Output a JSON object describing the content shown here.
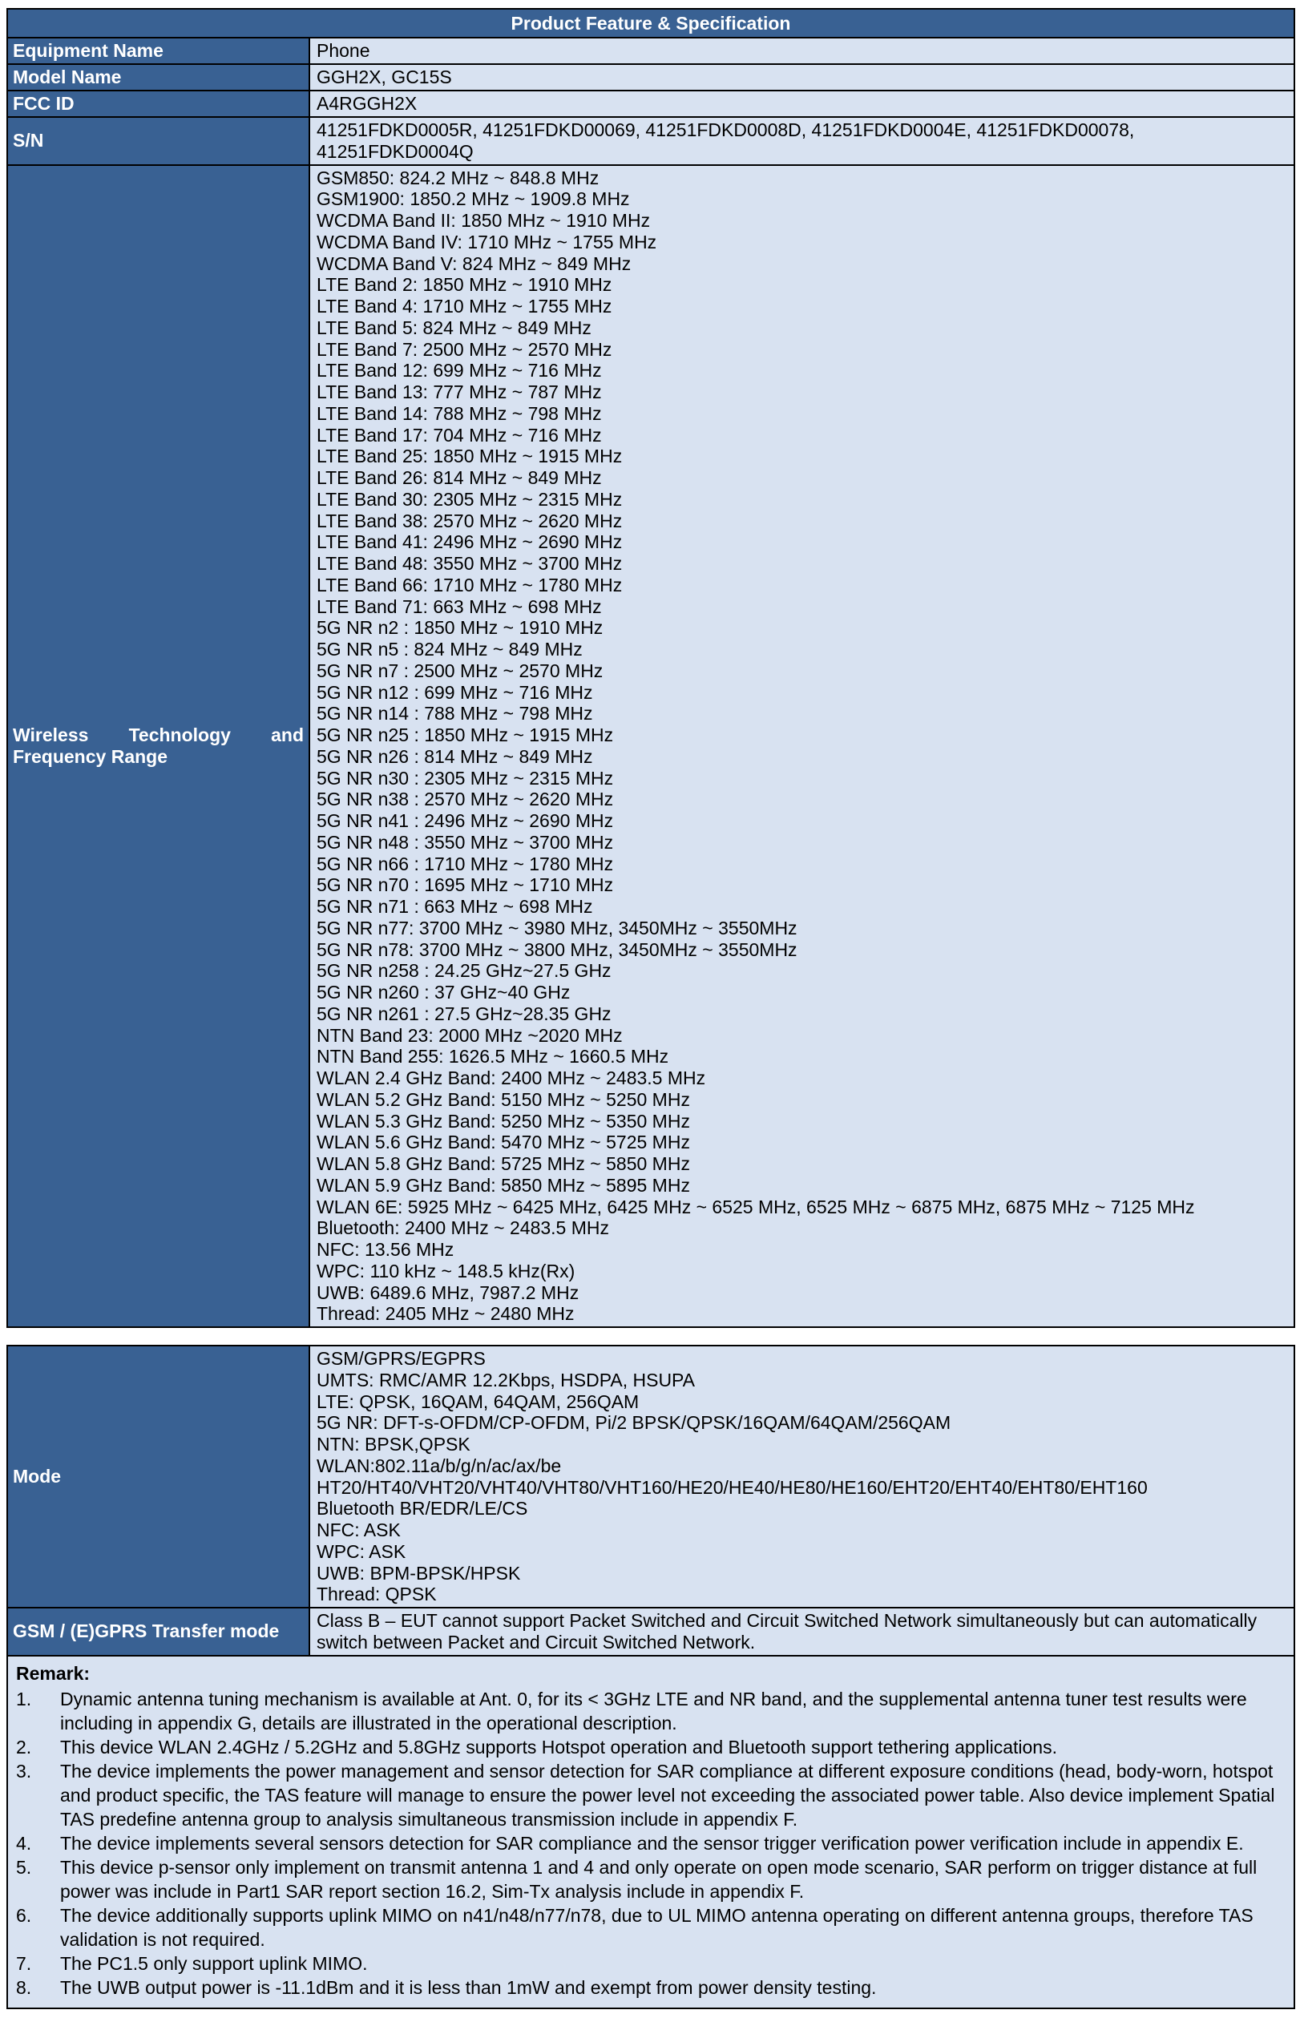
{
  "colors": {
    "header_bg": "#396193",
    "label_bg": "#396193",
    "label_text": "#ffffff",
    "value_bg": "#D8E2F1",
    "value_text": "#000000",
    "border": "#000000",
    "page_bg": "#ffffff"
  },
  "table1": {
    "title": "Product Feature & Specification",
    "rows": [
      {
        "label": "Equipment Name",
        "value": "Phone"
      },
      {
        "label": "Model Name",
        "value": "GGH2X, GC15S"
      },
      {
        "label": "FCC ID",
        "value": "A4RGGH2X"
      },
      {
        "label": "S/N",
        "value": "41251FDKD0005R, 41251FDKD00069, 41251FDKD0008D, 41251FDKD0004E, 41251FDKD00078, 41251FDKD0004Q"
      },
      {
        "label": "Wireless Technology and Frequency Range",
        "lines": [
          "GSM850: 824.2 MHz ~ 848.8 MHz",
          "GSM1900: 1850.2 MHz ~ 1909.8 MHz",
          "WCDMA Band II: 1850 MHz ~ 1910 MHz",
          "WCDMA Band IV: 1710 MHz ~ 1755 MHz",
          "WCDMA Band V: 824 MHz ~ 849 MHz",
          "LTE Band 2: 1850 MHz ~ 1910 MHz",
          "LTE Band 4: 1710 MHz ~ 1755 MHz",
          "LTE Band 5: 824 MHz ~ 849 MHz",
          "LTE Band 7: 2500 MHz ~ 2570 MHz",
          "LTE Band 12: 699 MHz ~ 716 MHz",
          "LTE Band 13: 777 MHz ~ 787 MHz",
          "LTE Band 14: 788 MHz ~ 798 MHz",
          "LTE Band 17: 704 MHz ~ 716 MHz",
          "LTE Band 25: 1850 MHz ~ 1915 MHz",
          "LTE Band 26: 814 MHz ~ 849 MHz",
          "LTE Band 30: 2305 MHz ~ 2315 MHz",
          "LTE Band 38: 2570 MHz ~ 2620 MHz",
          "LTE Band 41: 2496 MHz ~ 2690 MHz",
          "LTE Band 48: 3550 MHz ~ 3700 MHz",
          "LTE Band 66: 1710 MHz ~ 1780 MHz",
          "LTE Band 71: 663 MHz ~ 698 MHz",
          "5G NR n2 : 1850 MHz ~ 1910 MHz",
          "5G NR n5 : 824 MHz ~ 849 MHz",
          "5G NR n7 : 2500 MHz ~ 2570 MHz",
          "5G NR n12 : 699 MHz ~ 716 MHz",
          "5G NR n14 : 788 MHz ~ 798 MHz",
          "5G NR n25 : 1850 MHz ~ 1915 MHz",
          "5G NR n26 : 814 MHz ~ 849 MHz",
          "5G NR n30 : 2305 MHz ~ 2315 MHz",
          "5G NR n38 : 2570 MHz ~ 2620 MHz",
          "5G NR n41 : 2496 MHz ~ 2690 MHz",
          "5G NR n48 : 3550 MHz ~ 3700 MHz",
          "5G NR n66 : 1710 MHz ~ 1780 MHz",
          "5G NR n70 : 1695 MHz ~ 1710 MHz",
          "5G NR n71 : 663 MHz ~ 698 MHz",
          "5G NR n77: 3700 MHz ~ 3980 MHz, 3450MHz ~ 3550MHz",
          "5G NR n78: 3700 MHz ~ 3800 MHz, 3450MHz ~ 3550MHz",
          "5G NR n258 : 24.25 GHz~27.5 GHz",
          "5G NR n260 : 37 GHz~40 GHz",
          "5G NR n261 : 27.5 GHz~28.35 GHz",
          "NTN Band 23: 2000 MHz ~2020 MHz",
          "NTN Band 255: 1626.5 MHz ~ 1660.5 MHz",
          "WLAN 2.4 GHz Band: 2400 MHz ~ 2483.5 MHz",
          "WLAN 5.2 GHz Band: 5150 MHz ~ 5250 MHz",
          "WLAN 5.3 GHz Band: 5250 MHz ~ 5350 MHz",
          "WLAN 5.6 GHz Band: 5470 MHz ~ 5725 MHz",
          "WLAN 5.8 GHz Band: 5725 MHz ~ 5850 MHz",
          "WLAN 5.9 GHz Band: 5850 MHz ~ 5895 MHz",
          "WLAN 6E: 5925 MHz ~ 6425 MHz, 6425 MHz ~ 6525 MHz, 6525 MHz ~ 6875 MHz, 6875 MHz ~ 7125 MHz",
          "Bluetooth: 2400 MHz ~ 2483.5 MHz",
          "NFC: 13.56 MHz",
          "WPC: 110 kHz ~ 148.5 kHz(Rx)",
          "UWB: 6489.6 MHz, 7987.2 MHz",
          "Thread: 2405 MHz ~ 2480 MHz"
        ]
      }
    ]
  },
  "table2": {
    "mode": {
      "label": "Mode",
      "lines": [
        "GSM/GPRS/EGPRS",
        "UMTS: RMC/AMR 12.2Kbps, HSDPA, HSUPA",
        "LTE: QPSK, 16QAM, 64QAM, 256QAM",
        "5G NR: DFT-s-OFDM/CP-OFDM, Pi/2 BPSK/QPSK/16QAM/64QAM/256QAM",
        "NTN: BPSK,QPSK",
        "WLAN:802.11a/b/g/n/ac/ax/be",
        "HT20/HT40/VHT20/VHT40/VHT80/VHT160/HE20/HE40/HE80/HE160/EHT20/EHT40/EHT80/EHT160",
        "Bluetooth BR/EDR/LE/CS",
        "NFC: ASK",
        "WPC: ASK",
        "UWB: BPM-BPSK/HPSK",
        "Thread: QPSK"
      ]
    },
    "transfer": {
      "label": "GSM / (E)GPRS Transfer mode",
      "value": "Class B – EUT cannot support Packet Switched and Circuit Switched Network simultaneously but can automatically switch between Packet and Circuit Switched Network."
    },
    "remark": {
      "heading": "Remark:",
      "items": [
        {
          "num": "1.",
          "text": "Dynamic antenna tuning mechanism is available at Ant. 0, for its < 3GHz LTE and NR band, and the supplemental antenna tuner test results were including in appendix G, details are illustrated in the operational description."
        },
        {
          "num": "2.",
          "text": "This device WLAN 2.4GHz / 5.2GHz and 5.8GHz supports Hotspot operation and Bluetooth support tethering applications."
        },
        {
          "num": "3.",
          "text": "The device implements the power management and sensor detection for SAR compliance at different exposure conditions (head, body-worn, hotspot and product specific, the TAS feature will manage to ensure the power level not exceeding the associated power table. Also device implement Spatial TAS predefine antenna group to analysis simultaneous transmission include in appendix F."
        },
        {
          "num": "4.",
          "text": "The device implements several sensors detection for SAR compliance and the sensor trigger verification power verification include in appendix E."
        },
        {
          "num": "5.",
          "text": "This device p-sensor only implement on transmit antenna 1 and 4 and only operate on open mode scenario, SAR perform on trigger distance at full power was include in Part1 SAR report section 16.2, Sim-Tx analysis include in appendix F."
        },
        {
          "num": "6.",
          "text": "The device additionally supports uplink MIMO on n41/n48/n77/n78, due to UL MIMO antenna operating on different antenna groups, therefore TAS validation is not required."
        },
        {
          "num": "7.",
          "text": "The PC1.5 only support uplink MIMO."
        },
        {
          "num": "8.",
          "text": "The UWB output power is -11.1dBm and it is less than 1mW and exempt from power density testing."
        }
      ]
    }
  }
}
